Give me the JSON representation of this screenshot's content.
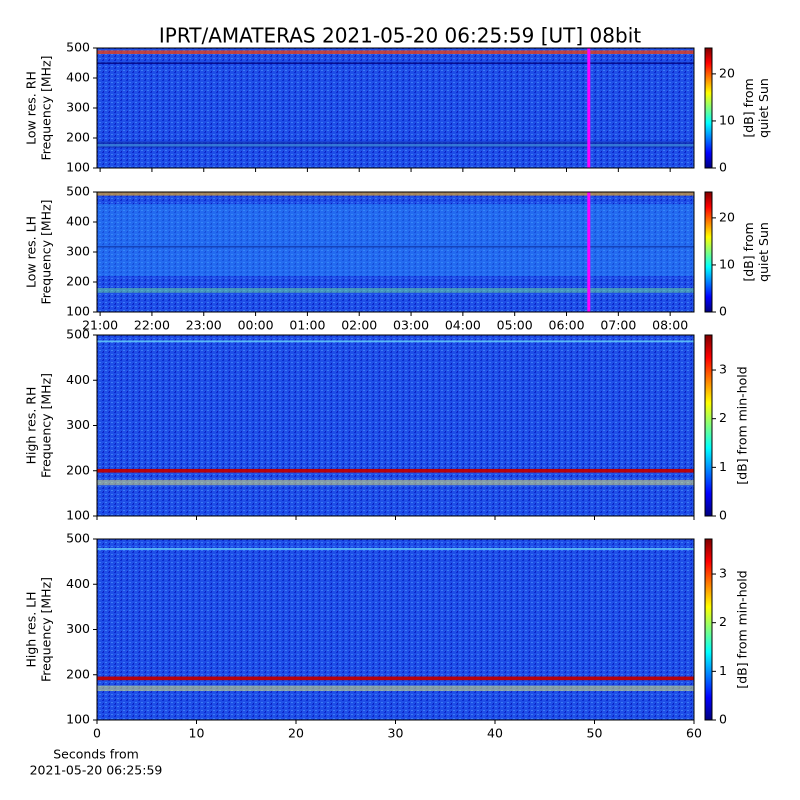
{
  "chart_data": [
    {
      "type": "spectrogram",
      "title": "IPRT/AMATERAS 2021-05-20 06:25:59 [UT]   08bit",
      "ylabel": [
        "Low res. RH",
        "Frequency [MHz]"
      ],
      "ylim": [
        100,
        500
      ],
      "yticks": [
        100,
        200,
        300,
        400,
        500
      ],
      "xlim": [
        20.94,
        32.46
      ],
      "xticks": [
        21,
        22,
        23,
        24,
        25,
        26,
        27,
        28,
        29,
        30,
        31,
        32
      ],
      "show_xtick_labels": false,
      "colorbar": {
        "label": [
          "[dB] from",
          "quiet Sun"
        ],
        "lim": [
          0,
          25.5
        ],
        "ticks": [
          0,
          10,
          20
        ],
        "colormap": "jet"
      },
      "marker": {
        "x": 30.43,
        "color": "#ff00ff"
      }
    },
    {
      "type": "spectrogram",
      "ylabel": [
        "Low res. LH",
        "Frequency [MHz]"
      ],
      "ylim": [
        100,
        500
      ],
      "yticks": [
        100,
        200,
        300,
        400,
        500
      ],
      "xlim": [
        20.94,
        32.46
      ],
      "xticks": [
        {
          "value": 21,
          "label": "21:00"
        },
        {
          "value": 22,
          "label": "22:00"
        },
        {
          "value": 23,
          "label": "23:00"
        },
        {
          "value": 24,
          "label": "00:00"
        },
        {
          "value": 25,
          "label": "01:00"
        },
        {
          "value": 26,
          "label": "02:00"
        },
        {
          "value": 27,
          "label": "03:00"
        },
        {
          "value": 28,
          "label": "04:00"
        },
        {
          "value": 29,
          "label": "05:00"
        },
        {
          "value": 30,
          "label": "06:00"
        },
        {
          "value": 31,
          "label": "07:00"
        },
        {
          "value": 32,
          "label": "08:00"
        }
      ],
      "show_xtick_labels": true,
      "colorbar": {
        "label": [
          "[dB] from",
          "quiet Sun"
        ],
        "lim": [
          0,
          25.5
        ],
        "ticks": [
          0,
          10,
          20
        ],
        "colormap": "jet"
      },
      "marker": {
        "x": 30.43,
        "color": "#ff00ff"
      }
    },
    {
      "type": "spectrogram",
      "ylabel": [
        "High res. RH",
        "Frequency [MHz]"
      ],
      "ylim": [
        100,
        500
      ],
      "yticks": [
        100,
        200,
        300,
        400,
        500
      ],
      "xlim": [
        0,
        60
      ],
      "xticks": [
        0,
        10,
        20,
        30,
        40,
        50,
        60
      ],
      "show_xtick_labels": false,
      "colorbar": {
        "label": [
          "[dB] from min-hold"
        ],
        "lim": [
          0,
          3.72
        ],
        "ticks": [
          0,
          1,
          2,
          3
        ],
        "colormap": "jet"
      }
    },
    {
      "type": "spectrogram",
      "ylabel": [
        "High res. LH",
        "Frequency [MHz]"
      ],
      "ylim": [
        100,
        500
      ],
      "yticks": [
        100,
        200,
        300,
        400,
        500
      ],
      "xlim": [
        0,
        60
      ],
      "xticks": [
        0,
        10,
        20,
        30,
        40,
        50,
        60
      ],
      "show_xtick_labels": true,
      "xlabel": [
        "Seconds from",
        "2021-05-20 06:25:59"
      ],
      "colorbar": {
        "label": [
          "[dB] from min-hold"
        ],
        "lim": [
          0,
          3.72
        ],
        "ticks": [
          0,
          1,
          2,
          3
        ],
        "colormap": "jet"
      }
    }
  ]
}
